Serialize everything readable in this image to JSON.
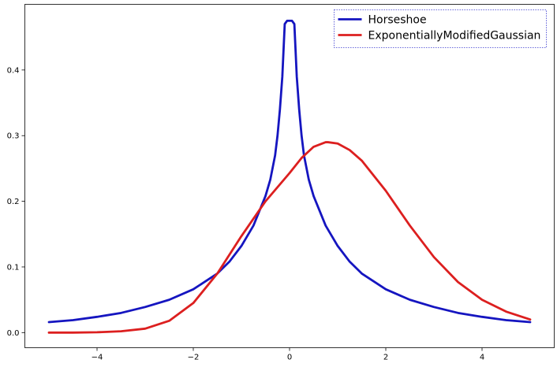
{
  "chart_data": {
    "type": "line",
    "title": "",
    "xlabel": "",
    "ylabel": "",
    "xlim": [
      -5.5,
      5.5
    ],
    "ylim": [
      -0.023,
      0.5
    ],
    "xticks": [
      -4,
      -2,
      0,
      2,
      4
    ],
    "xtick_labels": [
      "−4",
      "−2",
      "0",
      "2",
      "4"
    ],
    "yticks": [
      0.0,
      0.1,
      0.2,
      0.3,
      0.4
    ],
    "ytick_labels": [
      "0.0",
      "0.1",
      "0.2",
      "0.3",
      "0.4"
    ],
    "grid": false,
    "legend_position": "top-right",
    "series": [
      {
        "name": "Horseshoe",
        "color": "#1515c0",
        "x": [
          -5.0,
          -4.5,
          -4.0,
          -3.5,
          -3.0,
          -2.5,
          -2.0,
          -1.5,
          -1.25,
          -1.0,
          -0.75,
          -0.5,
          -0.4,
          -0.3,
          -0.25,
          -0.2,
          -0.15,
          -0.1,
          -0.05,
          0.0,
          0.05,
          0.1,
          0.15,
          0.2,
          0.25,
          0.3,
          0.4,
          0.5,
          0.75,
          1.0,
          1.25,
          1.5,
          2.0,
          2.5,
          3.0,
          3.5,
          4.0,
          4.5,
          5.0
        ],
        "y": [
          0.016,
          0.019,
          0.024,
          0.03,
          0.039,
          0.05,
          0.066,
          0.09,
          0.108,
          0.132,
          0.163,
          0.208,
          0.233,
          0.27,
          0.3,
          0.34,
          0.39,
          0.47,
          0.475,
          0.475,
          0.475,
          0.47,
          0.39,
          0.34,
          0.3,
          0.27,
          0.233,
          0.208,
          0.163,
          0.132,
          0.108,
          0.09,
          0.066,
          0.05,
          0.039,
          0.03,
          0.024,
          0.019,
          0.016
        ]
      },
      {
        "name": "ExponentiallyModifiedGaussian",
        "color": "#dc1f1f",
        "x": [
          -5.0,
          -4.5,
          -4.0,
          -3.5,
          -3.0,
          -2.5,
          -2.0,
          -1.5,
          -1.0,
          -0.5,
          0.0,
          0.25,
          0.5,
          0.75,
          0.8,
          1.0,
          1.25,
          1.5,
          2.0,
          2.5,
          3.0,
          3.5,
          4.0,
          4.5,
          5.0
        ],
        "y": [
          0.0,
          0.0,
          0.0005,
          0.002,
          0.006,
          0.018,
          0.045,
          0.09,
          0.147,
          0.2,
          0.243,
          0.266,
          0.283,
          0.29,
          0.29,
          0.288,
          0.278,
          0.262,
          0.216,
          0.163,
          0.115,
          0.077,
          0.05,
          0.032,
          0.02
        ]
      }
    ]
  }
}
